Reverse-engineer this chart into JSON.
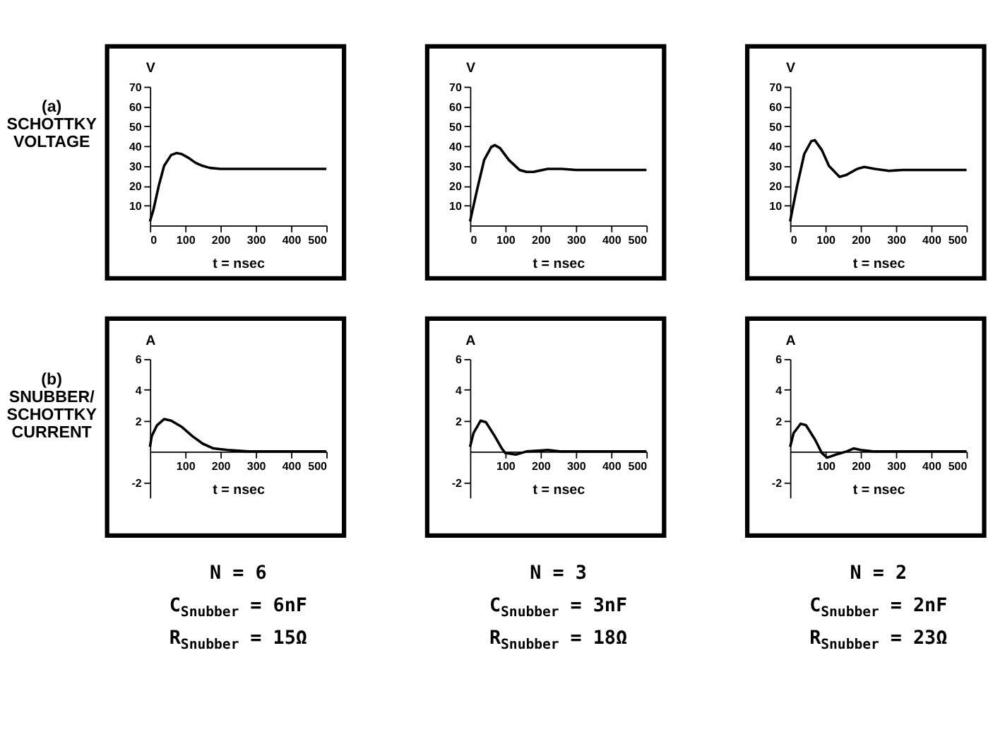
{
  "chart_data": [
    {
      "type": "line",
      "xlabel": "t = nsec",
      "ylabel": "V",
      "xlim": [
        0,
        500
      ],
      "ylim": [
        0,
        70
      ],
      "xticks": [
        0,
        100,
        200,
        300,
        400,
        500
      ],
      "yticks": [
        10,
        20,
        30,
        40,
        50,
        60,
        70
      ],
      "annotations": [
        "(a)\nSCHOTTKY\nVOLTAGE"
      ],
      "series": [
        {
          "color": "#000000",
          "x": [
            0,
            10,
            25,
            40,
            60,
            75,
            90,
            110,
            130,
            150,
            170,
            200,
            300,
            500
          ],
          "values": [
            2,
            8,
            20,
            30,
            35.5,
            36.5,
            36,
            34,
            31.5,
            30,
            29,
            28.5,
            28.5,
            28.5
          ]
        }
      ]
    },
    {
      "type": "line",
      "xlabel": "t = nsec",
      "ylabel": "V",
      "xlim": [
        0,
        500
      ],
      "ylim": [
        0,
        70
      ],
      "xticks": [
        0,
        100,
        200,
        300,
        400,
        500
      ],
      "yticks": [
        10,
        20,
        30,
        40,
        50,
        60,
        70
      ],
      "series": [
        {
          "color": "#000000",
          "x": [
            0,
            20,
            40,
            60,
            70,
            85,
            110,
            140,
            160,
            180,
            220,
            260,
            300,
            500
          ],
          "values": [
            2,
            18,
            33,
            39.5,
            40.5,
            39,
            33,
            28,
            27,
            27,
            28.5,
            28.5,
            28,
            28
          ]
        }
      ]
    },
    {
      "type": "line",
      "xlabel": "t = nsec",
      "ylabel": "V",
      "xlim": [
        0,
        500
      ],
      "ylim": [
        0,
        70
      ],
      "xticks": [
        0,
        100,
        200,
        300,
        400,
        500
      ],
      "yticks": [
        10,
        20,
        30,
        40,
        50,
        60,
        70
      ],
      "series": [
        {
          "color": "#000000",
          "x": [
            0,
            20,
            40,
            60,
            70,
            90,
            110,
            140,
            160,
            190,
            210,
            240,
            280,
            320,
            500
          ],
          "values": [
            2,
            20,
            36,
            42.5,
            43,
            38,
            30,
            24.5,
            25.5,
            28.5,
            29.5,
            28.5,
            27.5,
            28,
            28
          ]
        }
      ]
    },
    {
      "type": "line",
      "xlabel": "t = nsec",
      "ylabel": "A",
      "xlim": [
        0,
        500
      ],
      "ylim": [
        -3,
        6
      ],
      "xticks": [
        100,
        200,
        300,
        400,
        500
      ],
      "yticks": [
        -2,
        2,
        4,
        6
      ],
      "annotations": [
        "(b)\nSNUBBER/\nSCHOTTKY\nCURRENT",
        "N = 6",
        "C$_{Snubber}$ = 6nF",
        "R$_{Snubber}$ = 15Ω"
      ],
      "series": [
        {
          "color": "#000000",
          "x": [
            0,
            5,
            20,
            40,
            60,
            90,
            120,
            150,
            180,
            220,
            280,
            500
          ],
          "values": [
            0.3,
            1.0,
            1.7,
            2.1,
            2.0,
            1.6,
            1.0,
            0.5,
            0.2,
            0.1,
            0,
            0
          ]
        }
      ]
    },
    {
      "type": "line",
      "xlabel": "t = nsec",
      "ylabel": "A",
      "xlim": [
        0,
        500
      ],
      "ylim": [
        -3,
        6
      ],
      "xticks": [
        100,
        200,
        300,
        400,
        500
      ],
      "yticks": [
        -2,
        2,
        4,
        6
      ],
      "annotations": [
        "N = 3",
        "C$_{Snubber}$ = 3nF",
        "R$_{Snubber}$ = 18Ω"
      ],
      "series": [
        {
          "color": "#000000",
          "x": [
            0,
            10,
            30,
            45,
            70,
            90,
            100,
            130,
            160,
            220,
            260,
            500
          ],
          "values": [
            0.3,
            1.2,
            2.0,
            1.9,
            1.0,
            0.2,
            -0.1,
            -0.2,
            0,
            0.1,
            0,
            0
          ]
        }
      ]
    },
    {
      "type": "line",
      "xlabel": "t = nsec",
      "ylabel": "A",
      "xlim": [
        0,
        500
      ],
      "ylim": [
        -3,
        6
      ],
      "xticks": [
        100,
        200,
        300,
        400,
        500
      ],
      "yticks": [
        -2,
        2,
        4,
        6
      ],
      "annotations": [
        "N = 2",
        "C$_{Snubber}$ = 2nF",
        "R$_{Snubber}$ = 23Ω"
      ],
      "series": [
        {
          "color": "#000000",
          "x": [
            0,
            10,
            30,
            45,
            70,
            90,
            105,
            130,
            160,
            180,
            200,
            240,
            500
          ],
          "values": [
            0.3,
            1.2,
            1.8,
            1.7,
            0.8,
            -0.1,
            -0.4,
            -0.2,
            0,
            0.2,
            0.1,
            0,
            0
          ]
        }
      ]
    }
  ]
}
